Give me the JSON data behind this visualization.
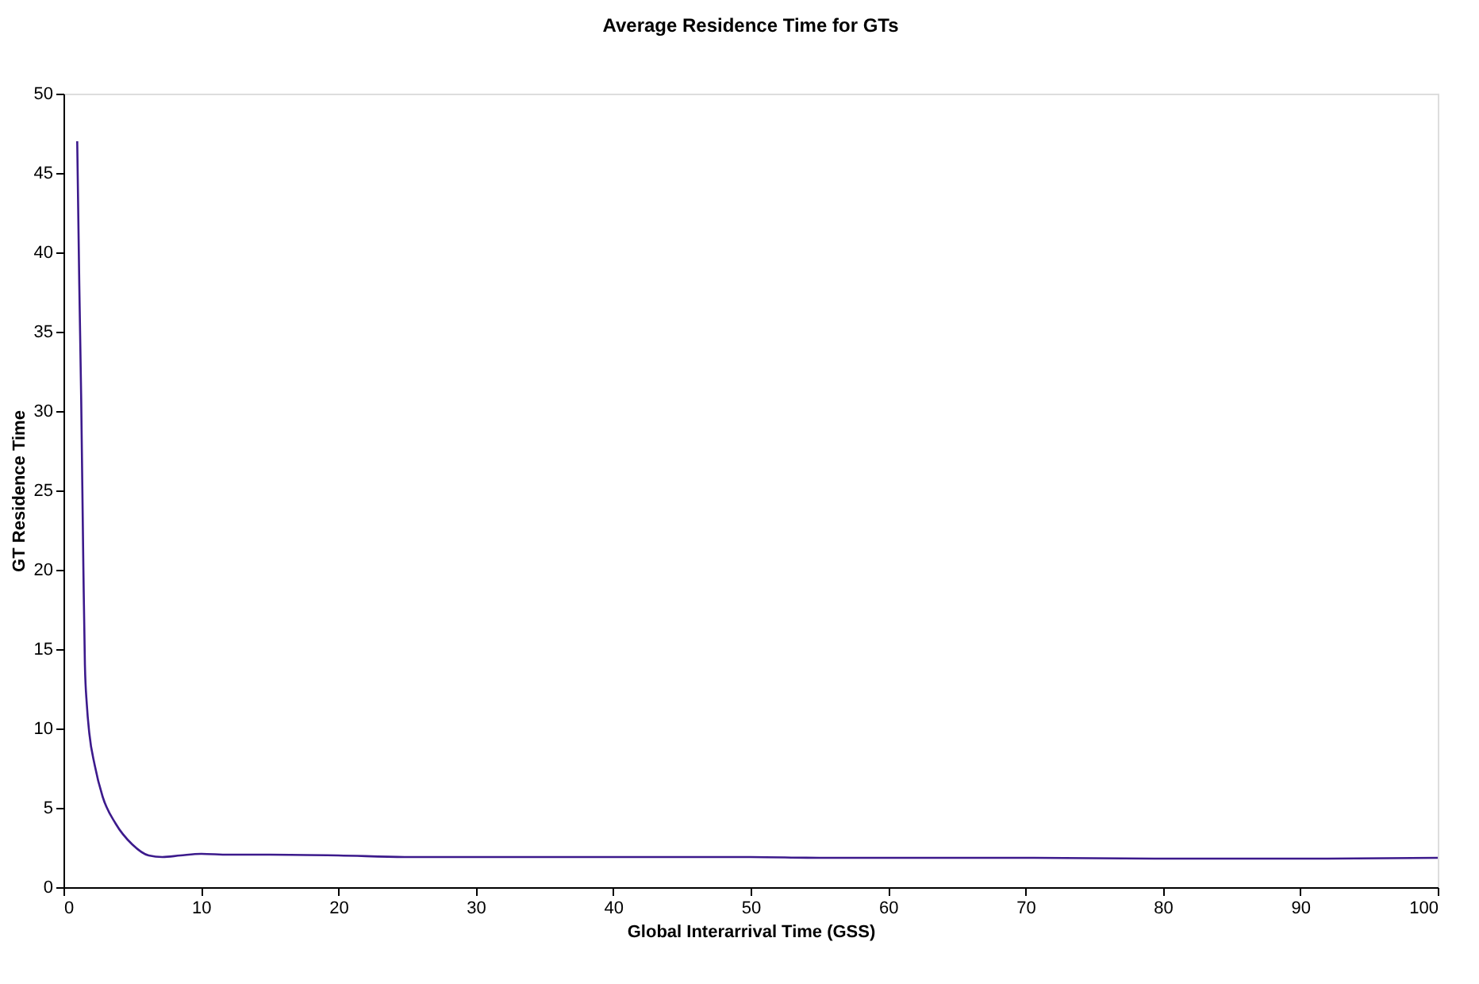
{
  "chart_data": {
    "type": "line",
    "title": "Average Residence Time for GTs",
    "xlabel": "Global Interarrival Time (GSS)",
    "ylabel": "GT Residence Time",
    "x": [
      1,
      1.15,
      1.29,
      1.45,
      1.56,
      1.7,
      1.88,
      2.27,
      2.85,
      3.8,
      5,
      6.2,
      7.2,
      8.5,
      10,
      12,
      15,
      20,
      25,
      30,
      40,
      50,
      55,
      60,
      70,
      80,
      90,
      100
    ],
    "series": [
      {
        "color": "#3c1a8c",
        "values": [
          47,
          38,
          30.7,
          20,
          14,
          11.5,
          9.7,
          7.7,
          5.7,
          4.0,
          2.7,
          2.0,
          1.9,
          2.0,
          2.1,
          2.05,
          2.05,
          2.0,
          1.9,
          1.9,
          1.9,
          1.9,
          1.85,
          1.85,
          1.85,
          1.8,
          1.8,
          1.85
        ]
      }
    ],
    "xlim": [
      0,
      100
    ],
    "xticks": [
      0,
      10,
      20,
      30,
      40,
      50,
      60,
      70,
      80,
      90,
      100
    ],
    "ylim": [
      0,
      50
    ],
    "yticks": [
      0,
      5,
      10,
      15,
      20,
      25,
      30,
      35,
      40,
      45,
      50
    ],
    "grid": false,
    "legend": false,
    "marker": "none",
    "line_style": "solid"
  }
}
